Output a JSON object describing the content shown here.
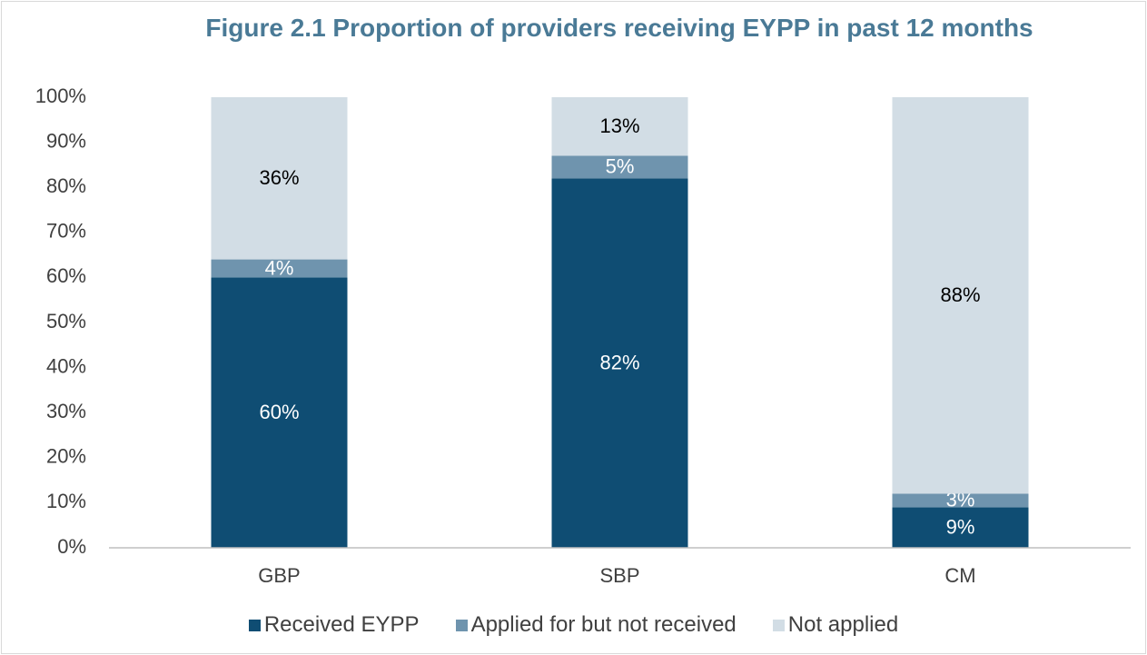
{
  "chart_data": {
    "type": "stacked_bar",
    "title": "Figure 2.1 Proportion of providers receiving EYPP in past 12 months",
    "categories": [
      "GBP",
      "SBP",
      "CM"
    ],
    "series": [
      {
        "name": "Received EYPP",
        "color": "#0f4d73",
        "label_color": "#ffffff",
        "values": [
          60,
          82,
          9
        ],
        "value_labels": [
          "60%",
          "82%",
          "9%"
        ]
      },
      {
        "name": "Applied for but not received",
        "color": "#6f94ae",
        "label_color": "#ffffff",
        "values": [
          4,
          5,
          3
        ],
        "value_labels": [
          "4%",
          "5%",
          "3%"
        ]
      },
      {
        "name": "Not applied",
        "color": "#d2dde5",
        "label_color": "#000000",
        "values": [
          36,
          13,
          88
        ],
        "value_labels": [
          "36%",
          "13%",
          "88%"
        ]
      }
    ],
    "ylim": [
      0,
      100
    ],
    "yticks": [
      {
        "value": 0,
        "label": "0%"
      },
      {
        "value": 10,
        "label": "10%"
      },
      {
        "value": 20,
        "label": "20%"
      },
      {
        "value": 30,
        "label": "30%"
      },
      {
        "value": 40,
        "label": "40%"
      },
      {
        "value": 50,
        "label": "50%"
      },
      {
        "value": 60,
        "label": "60%"
      },
      {
        "value": 70,
        "label": "70%"
      },
      {
        "value": 80,
        "label": "80%"
      },
      {
        "value": 90,
        "label": "90%"
      },
      {
        "value": 100,
        "label": "100%"
      }
    ],
    "grid": false,
    "legend": "bottom"
  }
}
